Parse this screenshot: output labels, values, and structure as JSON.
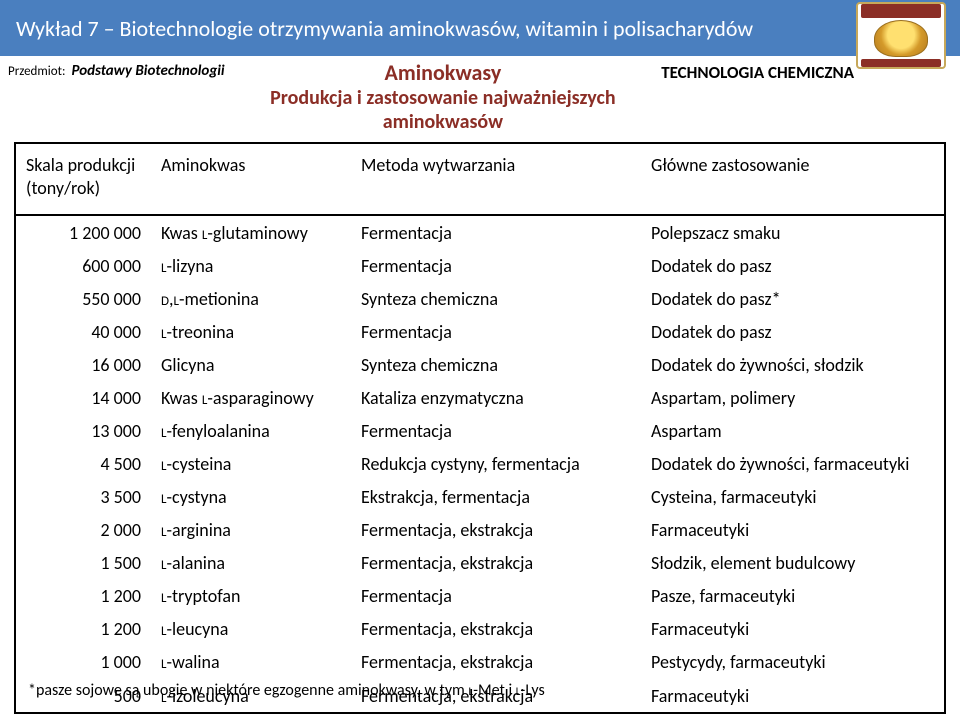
{
  "colors": {
    "header_bg": "#4a7fbf",
    "header_fg": "#ffffff",
    "accent": "#8b2e26",
    "border": "#000000",
    "page_bg": "#ffffff"
  },
  "typography": {
    "header_fontsize": 22,
    "title_fontsize": 22,
    "subtitle_fontsize": 20,
    "table_fontsize": 18,
    "footnote_fontsize": 16
  },
  "header": {
    "lecture_title": "Wykład 7 – Biotechnologie otrzymywania aminokwasów, witamin i polisacharydów"
  },
  "subbar": {
    "subject_label": "Przedmiot:",
    "subject_value": "Podstawy Biotechnologii",
    "title_line1": "Aminokwasy",
    "title_line2": "Produkcja i zastosowanie najważniejszych aminokwasów",
    "tech_label": "TECHNOLOGIA CHEMICZNA"
  },
  "table": {
    "columns": {
      "scale_line1": "Skala produkcji",
      "scale_line2": "(tony/rok)",
      "amino": "Aminokwas",
      "method": "Metoda wytwarzania",
      "use": "Główne zastosowanie"
    },
    "rows": [
      {
        "scale": "1 200 000",
        "amino_prefix": "Kwas ",
        "amino_sc": "l",
        "amino_main": "-glutaminowy",
        "method": "Fermentacja",
        "use": "Polepszacz smaku"
      },
      {
        "scale": "600 000",
        "amino_prefix": "",
        "amino_sc": "l",
        "amino_main": "-lizyna",
        "method": "Fermentacja",
        "use": "Dodatek do pasz"
      },
      {
        "scale": "550 000",
        "amino_prefix": "",
        "amino_sc": "d,l",
        "amino_main": "-metionina",
        "method": "Synteza chemiczna",
        "use": "Dodatek do pasz*"
      },
      {
        "scale": "40 000",
        "amino_prefix": "",
        "amino_sc": "l",
        "amino_main": "-treonina",
        "method": "Fermentacja",
        "use": "Dodatek do pasz"
      },
      {
        "scale": "16 000",
        "amino_prefix": "Glicyna",
        "amino_sc": "",
        "amino_main": "",
        "method": "Synteza chemiczna",
        "use": "Dodatek do żywności, słodzik"
      },
      {
        "scale": "14 000",
        "amino_prefix": "Kwas ",
        "amino_sc": "l",
        "amino_main": "-asparaginowy",
        "method": "Kataliza enzymatyczna",
        "use": "Aspartam, polimery"
      },
      {
        "scale": "13 000",
        "amino_prefix": "",
        "amino_sc": "l",
        "amino_main": "-fenyloalanina",
        "method": "Fermentacja",
        "use": "Aspartam"
      },
      {
        "scale": "4 500",
        "amino_prefix": "",
        "amino_sc": "l",
        "amino_main": "-cysteina",
        "method": "Redukcja cystyny, fermentacja",
        "use": "Dodatek do żywności, farmaceutyki"
      },
      {
        "scale": "3 500",
        "amino_prefix": "",
        "amino_sc": "l",
        "amino_main": "-cystyna",
        "method": "Ekstrakcja, fermentacja",
        "use": "Cysteina, farmaceutyki"
      },
      {
        "scale": "2 000",
        "amino_prefix": "",
        "amino_sc": "l",
        "amino_main": "-arginina",
        "method": "Fermentacja, ekstrakcja",
        "use": "Farmaceutyki"
      },
      {
        "scale": "1 500",
        "amino_prefix": "",
        "amino_sc": "l",
        "amino_main": "-alanina",
        "method": "Fermentacja, ekstrakcja",
        "use": "Słodzik, element budulcowy"
      },
      {
        "scale": "1 200",
        "amino_prefix": "",
        "amino_sc": "l",
        "amino_main": "-tryptofan",
        "method": "Fermentacja",
        "use": "Pasze, farmaceutyki"
      },
      {
        "scale": "1 200",
        "amino_prefix": "",
        "amino_sc": "l",
        "amino_main": "-leucyna",
        "method": "Fermentacja, ekstrakcja",
        "use": "Farmaceutyki"
      },
      {
        "scale": "1 000",
        "amino_prefix": "",
        "amino_sc": "l",
        "amino_main": "-walina",
        "method": "Fermentacja, ekstrakcja",
        "use": "Pestycydy, farmaceutyki"
      },
      {
        "scale": "500",
        "amino_prefix": "",
        "amino_sc": "l",
        "amino_main": "-izoleucyna",
        "method": "Fermentacja, ekstrakcja",
        "use": "Farmaceutyki"
      }
    ]
  },
  "footnote": {
    "pre": "*pasze sojowe są ubogie w niektóre egzogenne aminokwasy, w tym ",
    "sc1": "l",
    "mid1": "-Met i ",
    "sc2": "l",
    "mid2": "-Lys"
  }
}
